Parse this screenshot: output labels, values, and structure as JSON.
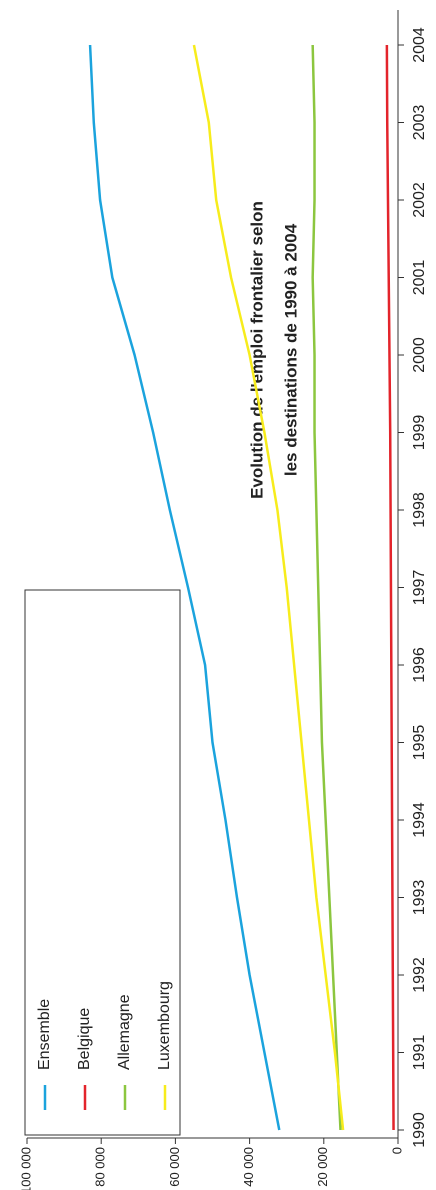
{
  "chart_data": {
    "type": "line",
    "title": [
      "Evolution de l'emploi frontalier selon",
      "les destinations de 1990 à 2004"
    ],
    "x": [
      1990,
      1991,
      1992,
      1993,
      1994,
      1995,
      1996,
      1997,
      1998,
      1999,
      2000,
      2001,
      2002,
      2003,
      2004
    ],
    "xlim": [
      1990,
      2004.5
    ],
    "xticks": [
      1990,
      1991,
      1992,
      1993,
      1994,
      1995,
      1996,
      1997,
      1998,
      1999,
      2000,
      2001,
      2002,
      2003,
      2004
    ],
    "ylim": [
      0,
      100000
    ],
    "yticks": [
      0,
      {
        "value": 20000,
        "label": "20 000"
      },
      {
        "value": 40000,
        "label": "40 000"
      },
      {
        "value": 60000,
        "label": "60 000"
      },
      {
        "value": 80000,
        "label": "80 000"
      },
      {
        "value": 100000,
        "label": "100 000"
      }
    ],
    "series": [
      {
        "name": "Ensemble",
        "color": "#1ba3dd",
        "values": [
          32000,
          36000,
          40000,
          43400,
          46500,
          50000,
          52000,
          56600,
          61500,
          66000,
          71000,
          77000,
          80300,
          82000,
          83000
        ]
      },
      {
        "name": "Belgique",
        "color": "#e3242b",
        "values": [
          1200,
          1300,
          1400,
          1500,
          1600,
          1700,
          1800,
          1900,
          2000,
          2100,
          2300,
          2500,
          2700,
          2900,
          3000
        ]
      },
      {
        "name": "Allemagne",
        "color": "#8cc63f",
        "values": [
          15500,
          16500,
          17500,
          18500,
          19500,
          20500,
          21000,
          21500,
          22000,
          22500,
          22500,
          23000,
          22500,
          22500,
          23000
        ]
      },
      {
        "name": "Luxembourg",
        "color": "#f7ec1c",
        "values": [
          14800,
          17000,
          19500,
          22000,
          24000,
          26000,
          28000,
          30000,
          32500,
          36000,
          40000,
          45000,
          49000,
          51000,
          55000
        ]
      }
    ],
    "grid": false
  }
}
